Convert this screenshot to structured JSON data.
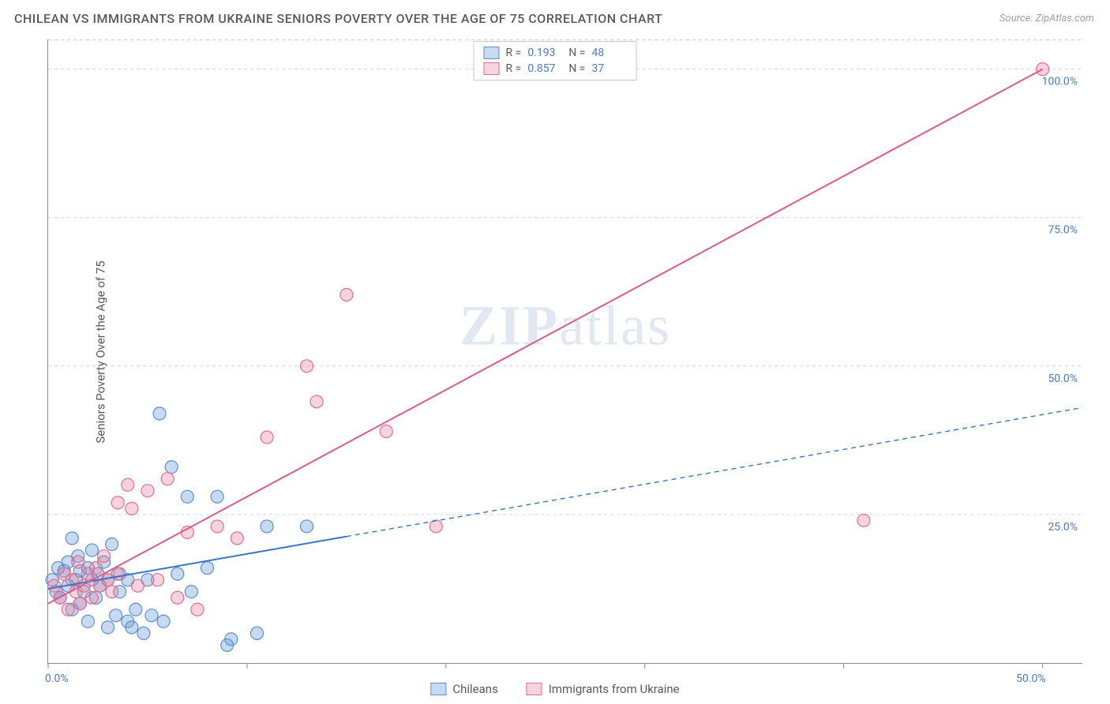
{
  "chart": {
    "type": "scatter-correlation",
    "title": "CHILEAN VS IMMIGRANTS FROM UKRAINE SENIORS POVERTY OVER THE AGE OF 75 CORRELATION CHART",
    "source": "Source: ZipAtlas.com",
    "ylabel": "Seniors Poverty Over the Age of 75",
    "watermark": "ZIPatlas",
    "background_color": "#ffffff",
    "grid_color": "#d0d0d0",
    "axis_color": "#888888",
    "text_color": "#555a60",
    "value_color": "#4a7dbf",
    "xlim": [
      0,
      52
    ],
    "ylim": [
      0,
      105
    ],
    "x_ticks": [
      0,
      10,
      20,
      30,
      40,
      50
    ],
    "x_tick_labels": {
      "0": "0.0%",
      "50": "50.0%"
    },
    "y_ticks": [
      25,
      50,
      75,
      100
    ],
    "y_tick_labels": {
      "25": "25.0%",
      "50": "50.0%",
      "75": "75.0%",
      "100": "100.0%"
    },
    "marker_radius": 8,
    "marker_stroke_width": 1.2,
    "line_width": 2,
    "series": [
      {
        "key": "chileans",
        "label": "Chileans",
        "fill": "rgba(96,150,214,0.35)",
        "stroke": "#5b8fd0",
        "line_color": "#3b74c4",
        "line_dash_ext": "6 5",
        "R": "0.193",
        "N": "48",
        "fit": {
          "x1": 0,
          "y1": 12.5,
          "x2": 52,
          "y2": 43,
          "solid_until_x": 15
        },
        "points": [
          [
            0.2,
            14
          ],
          [
            0.4,
            12
          ],
          [
            0.5,
            16
          ],
          [
            0.6,
            11
          ],
          [
            0.8,
            15.5
          ],
          [
            1.0,
            17
          ],
          [
            1.0,
            13
          ],
          [
            1.2,
            9
          ],
          [
            1.2,
            21
          ],
          [
            1.4,
            14
          ],
          [
            1.5,
            18
          ],
          [
            1.6,
            10
          ],
          [
            1.6,
            15.5
          ],
          [
            1.8,
            12
          ],
          [
            2.0,
            16
          ],
          [
            2.0,
            7
          ],
          [
            2.2,
            14
          ],
          [
            2.2,
            19
          ],
          [
            2.4,
            11
          ],
          [
            2.5,
            15
          ],
          [
            2.6,
            13
          ],
          [
            2.8,
            17
          ],
          [
            3.0,
            6
          ],
          [
            3.0,
            14
          ],
          [
            3.2,
            20
          ],
          [
            3.4,
            8
          ],
          [
            3.5,
            15
          ],
          [
            3.6,
            12
          ],
          [
            4.0,
            7
          ],
          [
            4.0,
            14
          ],
          [
            4.2,
            6
          ],
          [
            4.4,
            9
          ],
          [
            4.8,
            5
          ],
          [
            5.0,
            14
          ],
          [
            5.2,
            8
          ],
          [
            5.6,
            42
          ],
          [
            5.8,
            7
          ],
          [
            6.2,
            33
          ],
          [
            6.5,
            15
          ],
          [
            7.0,
            28
          ],
          [
            7.2,
            12
          ],
          [
            8.0,
            16
          ],
          [
            8.5,
            28
          ],
          [
            9.0,
            3
          ],
          [
            9.2,
            4
          ],
          [
            10.5,
            5
          ],
          [
            11.0,
            23
          ],
          [
            13.0,
            23
          ]
        ]
      },
      {
        "key": "ukraine",
        "label": "Immigrants from Ukraine",
        "fill": "rgba(231,120,150,0.32)",
        "stroke": "#e16e92",
        "line_color": "#e05a84",
        "line_dash_ext": "",
        "R": "0.857",
        "N": "37",
        "fit": {
          "x1": 0,
          "y1": 10,
          "x2": 50,
          "y2": 100,
          "solid_until_x": 50
        },
        "points": [
          [
            0.3,
            13
          ],
          [
            0.6,
            11
          ],
          [
            0.8,
            15
          ],
          [
            1.0,
            9
          ],
          [
            1.2,
            14
          ],
          [
            1.4,
            12
          ],
          [
            1.5,
            17
          ],
          [
            1.6,
            10
          ],
          [
            1.8,
            13
          ],
          [
            2.0,
            15
          ],
          [
            2.2,
            11
          ],
          [
            2.4,
            16
          ],
          [
            2.6,
            13
          ],
          [
            2.8,
            18
          ],
          [
            3.0,
            14
          ],
          [
            3.2,
            12
          ],
          [
            3.5,
            27
          ],
          [
            3.6,
            15
          ],
          [
            4.0,
            30
          ],
          [
            4.2,
            26
          ],
          [
            4.5,
            13
          ],
          [
            5.0,
            29
          ],
          [
            5.5,
            14
          ],
          [
            6.0,
            31
          ],
          [
            6.5,
            11
          ],
          [
            7.0,
            22
          ],
          [
            7.5,
            9
          ],
          [
            8.5,
            23
          ],
          [
            9.5,
            21
          ],
          [
            11.0,
            38
          ],
          [
            13.0,
            50
          ],
          [
            13.5,
            44
          ],
          [
            15.0,
            62
          ],
          [
            17.0,
            39
          ],
          [
            19.5,
            23
          ],
          [
            41.0,
            24
          ],
          [
            50.0,
            100
          ]
        ]
      }
    ]
  }
}
